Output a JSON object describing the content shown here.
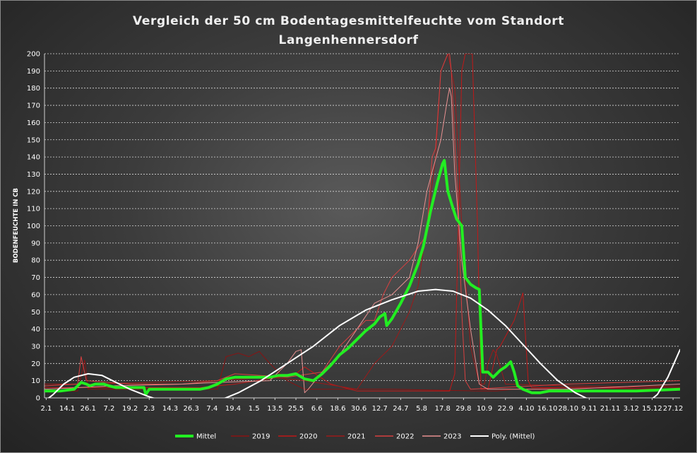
{
  "chart_data": {
    "type": "line",
    "title_line1": "Vergleich  der  50 cm  Bodentagesmittelfeuchte  vom  Standort",
    "title_line2": "Langenhennersdorf",
    "ylabel": "BODENFEUCHTE IN CB",
    "xlabel": "",
    "ylim": [
      0,
      200
    ],
    "yticks": [
      0,
      10,
      20,
      30,
      40,
      50,
      60,
      70,
      80,
      90,
      100,
      110,
      120,
      130,
      140,
      150,
      160,
      170,
      180,
      190,
      200
    ],
    "xlim": [
      1,
      365
    ],
    "grid": true,
    "legend_position": "bottom",
    "x_tick_labels": [
      "2.1",
      "14.1",
      "26.1",
      "7.2",
      "19.2",
      "2.3",
      "14.3",
      "26.3",
      "7.4",
      "19.4",
      "1.5",
      "13.5",
      "25.5",
      "6.6",
      "18.6",
      "30.6",
      "12.7",
      "24.7",
      "5.8",
      "17.8",
      "29.8",
      "10.9",
      "22.9",
      "4.10",
      "16.10",
      "28.10",
      "9.11",
      "21.11",
      "3.12",
      "15.12",
      "27.12"
    ],
    "x_tick_days": [
      2,
      14,
      26,
      38,
      50,
      61,
      73,
      85,
      97,
      109,
      121,
      133,
      145,
      157,
      169,
      181,
      193,
      205,
      217,
      229,
      241,
      253,
      265,
      277,
      289,
      301,
      313,
      325,
      337,
      349,
      361
    ],
    "series": [
      {
        "name": "2019",
        "color": "#8b1212",
        "width": 1,
        "points": [
          [
            1,
            4
          ],
          [
            20,
            4
          ],
          [
            24,
            22
          ],
          [
            26,
            5
          ],
          [
            60,
            5
          ],
          [
            100,
            5
          ],
          [
            105,
            24
          ],
          [
            112,
            26
          ],
          [
            118,
            24
          ],
          [
            124,
            27
          ],
          [
            130,
            20
          ],
          [
            140,
            10
          ],
          [
            150,
            5
          ],
          [
            180,
            5
          ],
          [
            200,
            5
          ],
          [
            250,
            4
          ],
          [
            260,
            4
          ],
          [
            270,
            5
          ],
          [
            275,
            5
          ],
          [
            300,
            6
          ],
          [
            330,
            6
          ],
          [
            365,
            7
          ]
        ]
      },
      {
        "name": "2020",
        "color": "#c01818",
        "width": 1,
        "points": [
          [
            1,
            6
          ],
          [
            30,
            6
          ],
          [
            60,
            6
          ],
          [
            90,
            6
          ],
          [
            110,
            8
          ],
          [
            135,
            12
          ],
          [
            145,
            14
          ],
          [
            150,
            18
          ],
          [
            165,
            8
          ],
          [
            180,
            4
          ],
          [
            200,
            4
          ],
          [
            230,
            4
          ],
          [
            233,
            4
          ],
          [
            236,
            14
          ],
          [
            238,
            100
          ],
          [
            240,
            190
          ],
          [
            242,
            200
          ],
          [
            246,
            200
          ],
          [
            249,
            100
          ],
          [
            251,
            5
          ],
          [
            255,
            5
          ],
          [
            260,
            28
          ],
          [
            262,
            30
          ],
          [
            270,
            45
          ],
          [
            275,
            61
          ],
          [
            278,
            10
          ],
          [
            280,
            6
          ],
          [
            300,
            6
          ],
          [
            365,
            5
          ]
        ]
      },
      {
        "name": "2021",
        "color": "#9c1a1a",
        "width": 1,
        "points": [
          [
            1,
            8
          ],
          [
            30,
            8
          ],
          [
            60,
            9
          ],
          [
            100,
            10
          ],
          [
            130,
            12
          ],
          [
            150,
            10
          ],
          [
            180,
            5
          ],
          [
            190,
            20
          ],
          [
            200,
            30
          ],
          [
            205,
            40
          ],
          [
            210,
            50
          ],
          [
            215,
            65
          ],
          [
            220,
            100
          ],
          [
            225,
            140
          ],
          [
            228,
            190
          ],
          [
            232,
            200
          ],
          [
            236,
            180
          ],
          [
            240,
            100
          ],
          [
            245,
            30
          ],
          [
            250,
            8
          ],
          [
            253,
            8
          ],
          [
            255,
            20
          ],
          [
            258,
            28
          ],
          [
            260,
            25
          ],
          [
            265,
            8
          ],
          [
            300,
            7
          ],
          [
            365,
            6
          ]
        ]
      },
      {
        "name": "2022",
        "color": "#d84040",
        "width": 1,
        "points": [
          [
            1,
            7
          ],
          [
            20,
            8
          ],
          [
            22,
            24
          ],
          [
            25,
            10
          ],
          [
            50,
            8
          ],
          [
            80,
            8
          ],
          [
            100,
            10
          ],
          [
            110,
            14
          ],
          [
            140,
            12
          ],
          [
            160,
            15
          ],
          [
            170,
            30
          ],
          [
            185,
            45
          ],
          [
            190,
            45
          ],
          [
            195,
            60
          ],
          [
            200,
            70
          ],
          [
            210,
            80
          ],
          [
            220,
            95
          ],
          [
            223,
            140
          ],
          [
            225,
            145
          ],
          [
            228,
            190
          ],
          [
            230,
            195
          ],
          [
            232,
            200
          ],
          [
            233,
            200
          ],
          [
            234,
            190
          ],
          [
            236,
            150
          ],
          [
            238,
            110
          ],
          [
            240,
            50
          ],
          [
            242,
            10
          ],
          [
            245,
            5
          ],
          [
            300,
            8
          ],
          [
            365,
            10
          ]
        ]
      },
      {
        "name": "2023",
        "color": "#e89090",
        "width": 1,
        "points": [
          [
            1,
            5
          ],
          [
            40,
            7
          ],
          [
            80,
            8
          ],
          [
            100,
            9
          ],
          [
            130,
            10
          ],
          [
            140,
            20
          ],
          [
            145,
            27
          ],
          [
            148,
            28
          ],
          [
            150,
            3
          ],
          [
            152,
            5
          ],
          [
            160,
            15
          ],
          [
            170,
            25
          ],
          [
            180,
            40
          ],
          [
            190,
            55
          ],
          [
            200,
            60
          ],
          [
            210,
            70
          ],
          [
            215,
            90
          ],
          [
            220,
            120
          ],
          [
            228,
            150
          ],
          [
            232,
            175
          ],
          [
            233,
            180
          ],
          [
            234,
            175
          ],
          [
            236,
            130
          ],
          [
            240,
            80
          ],
          [
            245,
            40
          ],
          [
            250,
            8
          ],
          [
            255,
            5
          ],
          [
            300,
            5
          ],
          [
            365,
            8
          ]
        ]
      },
      {
        "name": "Mittel",
        "color": "#22ee22",
        "width": 4,
        "points": [
          [
            1,
            4
          ],
          [
            10,
            4
          ],
          [
            18,
            5
          ],
          [
            22,
            9
          ],
          [
            25,
            8
          ],
          [
            27,
            7
          ],
          [
            30,
            8
          ],
          [
            35,
            8
          ],
          [
            38,
            7
          ],
          [
            42,
            6
          ],
          [
            50,
            6
          ],
          [
            55,
            6
          ],
          [
            58,
            6
          ],
          [
            59,
            2
          ],
          [
            61,
            5
          ],
          [
            70,
            5
          ],
          [
            80,
            5
          ],
          [
            90,
            5
          ],
          [
            95,
            6
          ],
          [
            100,
            8
          ],
          [
            105,
            11
          ],
          [
            110,
            12
          ],
          [
            115,
            12
          ],
          [
            120,
            12
          ],
          [
            125,
            12
          ],
          [
            130,
            12
          ],
          [
            135,
            13
          ],
          [
            140,
            13
          ],
          [
            145,
            14
          ],
          [
            150,
            11
          ],
          [
            155,
            10
          ],
          [
            160,
            14
          ],
          [
            165,
            19
          ],
          [
            170,
            25
          ],
          [
            175,
            29
          ],
          [
            180,
            34
          ],
          [
            185,
            39
          ],
          [
            190,
            43
          ],
          [
            193,
            47
          ],
          [
            196,
            49
          ],
          [
            197,
            42
          ],
          [
            200,
            46
          ],
          [
            205,
            55
          ],
          [
            210,
            65
          ],
          [
            215,
            78
          ],
          [
            218,
            88
          ],
          [
            222,
            108
          ],
          [
            226,
            125
          ],
          [
            229,
            136
          ],
          [
            230,
            138
          ],
          [
            232,
            120
          ],
          [
            235,
            110
          ],
          [
            237,
            104
          ],
          [
            240,
            100
          ],
          [
            242,
            70
          ],
          [
            245,
            66
          ],
          [
            248,
            64
          ],
          [
            250,
            63
          ],
          [
            251,
            40
          ],
          [
            252,
            15
          ],
          [
            255,
            15
          ],
          [
            258,
            12
          ],
          [
            262,
            16
          ],
          [
            265,
            18
          ],
          [
            268,
            21
          ],
          [
            270,
            15
          ],
          [
            272,
            7
          ],
          [
            275,
            5
          ],
          [
            280,
            3
          ],
          [
            285,
            3
          ],
          [
            290,
            4
          ],
          [
            300,
            4
          ],
          [
            320,
            4
          ],
          [
            340,
            4
          ],
          [
            365,
            5
          ]
        ]
      },
      {
        "name": "Poly. (Mittel)",
        "color": "#ffffff",
        "width": 2,
        "points": [
          [
            1,
            -2
          ],
          [
            6,
            2
          ],
          [
            12,
            8
          ],
          [
            18,
            12
          ],
          [
            26,
            14
          ],
          [
            34,
            13
          ],
          [
            42,
            9
          ],
          [
            50,
            5
          ],
          [
            60,
            1
          ],
          [
            72,
            -3
          ],
          [
            85,
            -5
          ],
          [
            100,
            -2
          ],
          [
            112,
            3
          ],
          [
            125,
            10
          ],
          [
            140,
            20
          ],
          [
            155,
            30
          ],
          [
            170,
            42
          ],
          [
            185,
            51
          ],
          [
            200,
            57
          ],
          [
            215,
            62
          ],
          [
            225,
            63
          ],
          [
            235,
            62
          ],
          [
            245,
            58
          ],
          [
            255,
            51
          ],
          [
            265,
            42
          ],
          [
            275,
            31
          ],
          [
            285,
            20
          ],
          [
            295,
            10
          ],
          [
            305,
            3
          ],
          [
            315,
            -2
          ],
          [
            330,
            -6
          ],
          [
            345,
            -4
          ],
          [
            352,
            2
          ],
          [
            358,
            12
          ],
          [
            365,
            28
          ]
        ]
      }
    ],
    "legend_order": [
      "Mittel",
      "2019",
      "2020",
      "2021",
      "2022",
      "2023",
      "Poly. (Mittel)"
    ]
  }
}
